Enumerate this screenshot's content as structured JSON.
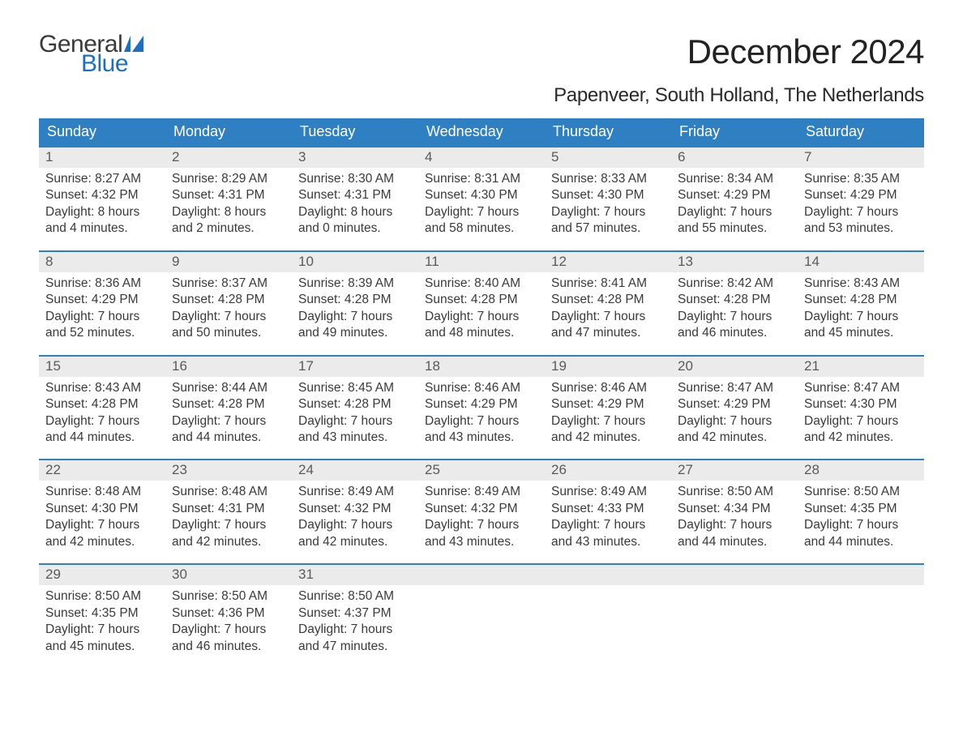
{
  "logo": {
    "text_general": "General",
    "text_blue": "Blue",
    "flag_color": "#1e6fc0",
    "text_dark": "#3a3a3a"
  },
  "title": "December 2024",
  "location": "Papenveer, South Holland, The Netherlands",
  "colors": {
    "header_bg": "#2f7fc3",
    "header_text": "#ffffff",
    "daynum_bg": "#ebebeb",
    "daynum_text": "#5a5a5a",
    "body_text": "#3a3a3a",
    "rule": "#2f7fc3",
    "page_bg": "#ffffff"
  },
  "fonts": {
    "title_size_pt": 32,
    "location_size_pt": 18,
    "weekday_size_pt": 14,
    "body_size_pt": 12
  },
  "weekdays": [
    "Sunday",
    "Monday",
    "Tuesday",
    "Wednesday",
    "Thursday",
    "Friday",
    "Saturday"
  ],
  "weeks": [
    [
      {
        "n": "1",
        "sunrise": "Sunrise: 8:27 AM",
        "sunset": "Sunset: 4:32 PM",
        "d1": "Daylight: 8 hours",
        "d2": "and 4 minutes."
      },
      {
        "n": "2",
        "sunrise": "Sunrise: 8:29 AM",
        "sunset": "Sunset: 4:31 PM",
        "d1": "Daylight: 8 hours",
        "d2": "and 2 minutes."
      },
      {
        "n": "3",
        "sunrise": "Sunrise: 8:30 AM",
        "sunset": "Sunset: 4:31 PM",
        "d1": "Daylight: 8 hours",
        "d2": "and 0 minutes."
      },
      {
        "n": "4",
        "sunrise": "Sunrise: 8:31 AM",
        "sunset": "Sunset: 4:30 PM",
        "d1": "Daylight: 7 hours",
        "d2": "and 58 minutes."
      },
      {
        "n": "5",
        "sunrise": "Sunrise: 8:33 AM",
        "sunset": "Sunset: 4:30 PM",
        "d1": "Daylight: 7 hours",
        "d2": "and 57 minutes."
      },
      {
        "n": "6",
        "sunrise": "Sunrise: 8:34 AM",
        "sunset": "Sunset: 4:29 PM",
        "d1": "Daylight: 7 hours",
        "d2": "and 55 minutes."
      },
      {
        "n": "7",
        "sunrise": "Sunrise: 8:35 AM",
        "sunset": "Sunset: 4:29 PM",
        "d1": "Daylight: 7 hours",
        "d2": "and 53 minutes."
      }
    ],
    [
      {
        "n": "8",
        "sunrise": "Sunrise: 8:36 AM",
        "sunset": "Sunset: 4:29 PM",
        "d1": "Daylight: 7 hours",
        "d2": "and 52 minutes."
      },
      {
        "n": "9",
        "sunrise": "Sunrise: 8:37 AM",
        "sunset": "Sunset: 4:28 PM",
        "d1": "Daylight: 7 hours",
        "d2": "and 50 minutes."
      },
      {
        "n": "10",
        "sunrise": "Sunrise: 8:39 AM",
        "sunset": "Sunset: 4:28 PM",
        "d1": "Daylight: 7 hours",
        "d2": "and 49 minutes."
      },
      {
        "n": "11",
        "sunrise": "Sunrise: 8:40 AM",
        "sunset": "Sunset: 4:28 PM",
        "d1": "Daylight: 7 hours",
        "d2": "and 48 minutes."
      },
      {
        "n": "12",
        "sunrise": "Sunrise: 8:41 AM",
        "sunset": "Sunset: 4:28 PM",
        "d1": "Daylight: 7 hours",
        "d2": "and 47 minutes."
      },
      {
        "n": "13",
        "sunrise": "Sunrise: 8:42 AM",
        "sunset": "Sunset: 4:28 PM",
        "d1": "Daylight: 7 hours",
        "d2": "and 46 minutes."
      },
      {
        "n": "14",
        "sunrise": "Sunrise: 8:43 AM",
        "sunset": "Sunset: 4:28 PM",
        "d1": "Daylight: 7 hours",
        "d2": "and 45 minutes."
      }
    ],
    [
      {
        "n": "15",
        "sunrise": "Sunrise: 8:43 AM",
        "sunset": "Sunset: 4:28 PM",
        "d1": "Daylight: 7 hours",
        "d2": "and 44 minutes."
      },
      {
        "n": "16",
        "sunrise": "Sunrise: 8:44 AM",
        "sunset": "Sunset: 4:28 PM",
        "d1": "Daylight: 7 hours",
        "d2": "and 44 minutes."
      },
      {
        "n": "17",
        "sunrise": "Sunrise: 8:45 AM",
        "sunset": "Sunset: 4:28 PM",
        "d1": "Daylight: 7 hours",
        "d2": "and 43 minutes."
      },
      {
        "n": "18",
        "sunrise": "Sunrise: 8:46 AM",
        "sunset": "Sunset: 4:29 PM",
        "d1": "Daylight: 7 hours",
        "d2": "and 43 minutes."
      },
      {
        "n": "19",
        "sunrise": "Sunrise: 8:46 AM",
        "sunset": "Sunset: 4:29 PM",
        "d1": "Daylight: 7 hours",
        "d2": "and 42 minutes."
      },
      {
        "n": "20",
        "sunrise": "Sunrise: 8:47 AM",
        "sunset": "Sunset: 4:29 PM",
        "d1": "Daylight: 7 hours",
        "d2": "and 42 minutes."
      },
      {
        "n": "21",
        "sunrise": "Sunrise: 8:47 AM",
        "sunset": "Sunset: 4:30 PM",
        "d1": "Daylight: 7 hours",
        "d2": "and 42 minutes."
      }
    ],
    [
      {
        "n": "22",
        "sunrise": "Sunrise: 8:48 AM",
        "sunset": "Sunset: 4:30 PM",
        "d1": "Daylight: 7 hours",
        "d2": "and 42 minutes."
      },
      {
        "n": "23",
        "sunrise": "Sunrise: 8:48 AM",
        "sunset": "Sunset: 4:31 PM",
        "d1": "Daylight: 7 hours",
        "d2": "and 42 minutes."
      },
      {
        "n": "24",
        "sunrise": "Sunrise: 8:49 AM",
        "sunset": "Sunset: 4:32 PM",
        "d1": "Daylight: 7 hours",
        "d2": "and 42 minutes."
      },
      {
        "n": "25",
        "sunrise": "Sunrise: 8:49 AM",
        "sunset": "Sunset: 4:32 PM",
        "d1": "Daylight: 7 hours",
        "d2": "and 43 minutes."
      },
      {
        "n": "26",
        "sunrise": "Sunrise: 8:49 AM",
        "sunset": "Sunset: 4:33 PM",
        "d1": "Daylight: 7 hours",
        "d2": "and 43 minutes."
      },
      {
        "n": "27",
        "sunrise": "Sunrise: 8:50 AM",
        "sunset": "Sunset: 4:34 PM",
        "d1": "Daylight: 7 hours",
        "d2": "and 44 minutes."
      },
      {
        "n": "28",
        "sunrise": "Sunrise: 8:50 AM",
        "sunset": "Sunset: 4:35 PM",
        "d1": "Daylight: 7 hours",
        "d2": "and 44 minutes."
      }
    ],
    [
      {
        "n": "29",
        "sunrise": "Sunrise: 8:50 AM",
        "sunset": "Sunset: 4:35 PM",
        "d1": "Daylight: 7 hours",
        "d2": "and 45 minutes."
      },
      {
        "n": "30",
        "sunrise": "Sunrise: 8:50 AM",
        "sunset": "Sunset: 4:36 PM",
        "d1": "Daylight: 7 hours",
        "d2": "and 46 minutes."
      },
      {
        "n": "31",
        "sunrise": "Sunrise: 8:50 AM",
        "sunset": "Sunset: 4:37 PM",
        "d1": "Daylight: 7 hours",
        "d2": "and 47 minutes."
      },
      null,
      null,
      null,
      null
    ]
  ]
}
